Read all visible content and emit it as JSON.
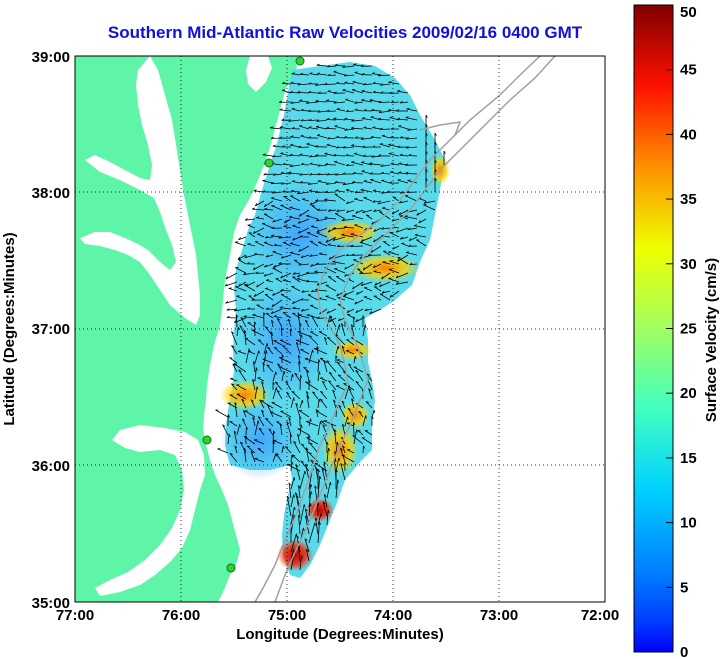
{
  "title": "Southern Mid-Atlantic Raw Velocities 2009/02/16 0400 GMT",
  "xlabel": "Longitude (Degrees:Minutes)",
  "ylabel": "Latitude (Degrees:Minutes)",
  "x_ticks": [
    "77:00",
    "76:00",
    "75:00",
    "74:00",
    "73:00",
    "72:00"
  ],
  "y_ticks": [
    "39:00",
    "38:00",
    "37:00",
    "36:00",
    "35:00"
  ],
  "colorbar": {
    "label": "Surface Velocity (cm/s)",
    "ticks": [
      "50",
      "45",
      "40",
      "35",
      "30",
      "25",
      "20",
      "15",
      "10",
      "5",
      "0"
    ],
    "min": 0,
    "max": 50
  },
  "colors": {
    "land": "#5ef5a8",
    "water": "#ffffff",
    "title": "#1010e0",
    "bathymetry": "#a0a0a0"
  },
  "map_extent": {
    "lon_min": -77,
    "lon_max": -72,
    "lat_min": 35,
    "lat_max": 39
  },
  "grid": true
}
